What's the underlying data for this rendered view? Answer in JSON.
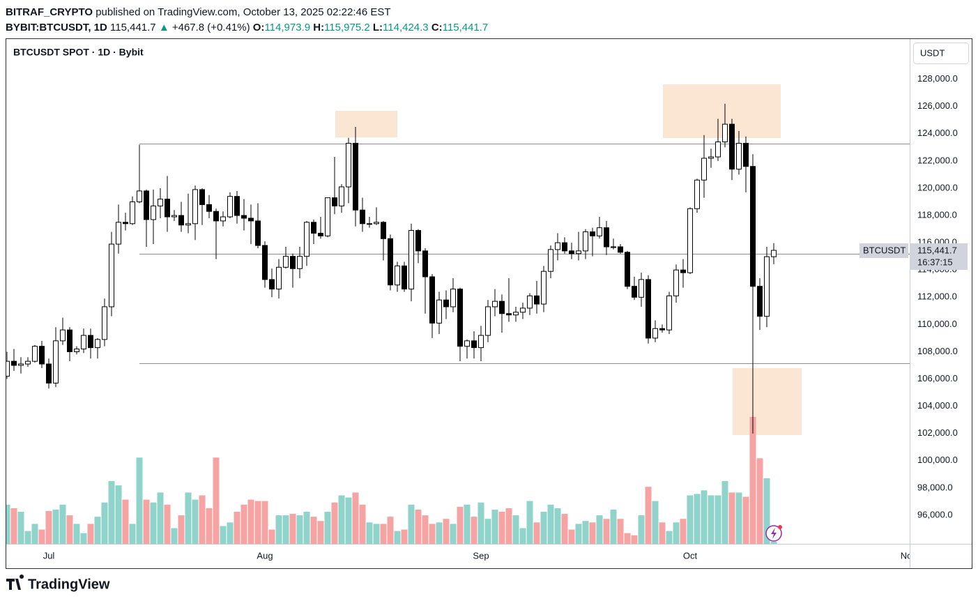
{
  "header": {
    "author": "BITRAF_CRYPTO",
    "published": "published on TradingView.com, October 13, 2025 02:22:46 EST"
  },
  "legend": {
    "symbol": "BYBIT:BTCUSDT, 1D",
    "last": "115,441.7",
    "arrow": "▲",
    "change": "+467.8 (+0.41%)",
    "ohlc": [
      {
        "key": "O:",
        "value": "114,973.9"
      },
      {
        "key": "H:",
        "value": "115,975.2"
      },
      {
        "key": "L:",
        "value": "114,424.3"
      },
      {
        "key": "C:",
        "value": "115,441.7"
      }
    ]
  },
  "footer": {
    "logo": "TradingView"
  },
  "chart_data": {
    "type": "candlestick",
    "title": "BTCUSDT SPOT · 1D · Bybit",
    "currency": "USDT",
    "symbol_label": "BTCUSDT",
    "last_label": "115,441.7",
    "countdown": "16:37:15",
    "x": [
      "2025-06-25",
      "2025-06-26",
      "2025-06-27",
      "2025-06-28",
      "2025-06-29",
      "2025-06-30",
      "2025-07-01",
      "2025-07-02",
      "2025-07-03",
      "2025-07-04",
      "2025-07-05",
      "2025-07-06",
      "2025-07-07",
      "2025-07-08",
      "2025-07-09",
      "2025-07-10",
      "2025-07-11",
      "2025-07-12",
      "2025-07-13",
      "2025-07-14",
      "2025-07-15",
      "2025-07-16",
      "2025-07-17",
      "2025-07-18",
      "2025-07-19",
      "2025-07-20",
      "2025-07-21",
      "2025-07-22",
      "2025-07-23",
      "2025-07-24",
      "2025-07-25",
      "2025-07-26",
      "2025-07-27",
      "2025-07-28",
      "2025-07-29",
      "2025-07-30",
      "2025-07-31",
      "2025-08-01",
      "2025-08-02",
      "2025-08-03",
      "2025-08-04",
      "2025-08-05",
      "2025-08-06",
      "2025-08-07",
      "2025-08-08",
      "2025-08-09",
      "2025-08-10",
      "2025-08-11",
      "2025-08-12",
      "2025-08-13",
      "2025-08-14",
      "2025-08-15",
      "2025-08-16",
      "2025-08-17",
      "2025-08-18",
      "2025-08-19",
      "2025-08-20",
      "2025-08-21",
      "2025-08-22",
      "2025-08-23",
      "2025-08-24",
      "2025-08-25",
      "2025-08-26",
      "2025-08-27",
      "2025-08-28",
      "2025-08-29",
      "2025-08-30",
      "2025-08-31",
      "2025-09-01",
      "2025-09-02",
      "2025-09-03",
      "2025-09-04",
      "2025-09-05",
      "2025-09-06",
      "2025-09-07",
      "2025-09-08",
      "2025-09-09",
      "2025-09-10",
      "2025-09-11",
      "2025-09-12",
      "2025-09-13",
      "2025-09-14",
      "2025-09-15",
      "2025-09-16",
      "2025-09-17",
      "2025-09-18",
      "2025-09-19",
      "2025-09-20",
      "2025-09-21",
      "2025-09-22",
      "2025-09-23",
      "2025-09-24",
      "2025-09-25",
      "2025-09-26",
      "2025-09-27",
      "2025-09-28",
      "2025-09-29",
      "2025-09-30",
      "2025-10-01",
      "2025-10-02",
      "2025-10-03",
      "2025-10-04",
      "2025-10-05",
      "2025-10-06",
      "2025-10-07",
      "2025-10-08",
      "2025-10-09",
      "2025-10-10",
      "2025-10-11",
      "2025-10-12",
      "2025-10-13"
    ],
    "open": [
      106200,
      107300,
      107000,
      107100,
      107300,
      108400,
      107100,
      105700,
      108800,
      109600,
      108000,
      108200,
      109200,
      108300,
      108900,
      111300,
      115900,
      117500,
      117400,
      119000,
      119800,
      117700,
      118700,
      119200,
      117900,
      118000,
      117300,
      117400,
      119900,
      118800,
      118300,
      117600,
      117900,
      119400,
      118000,
      117800,
      117600,
      115800,
      113300,
      112600,
      114200,
      115000,
      114100,
      115000,
      117500,
      116700,
      116500,
      119300,
      118700,
      120100,
      123300,
      118400,
      117400,
      117400,
      117500,
      116300,
      112900,
      114300,
      112600,
      116900,
      115400,
      113500,
      110100,
      111800,
      111300,
      112600,
      108400,
      108800,
      108300,
      109200,
      111300,
      111700,
      110800,
      110700,
      110900,
      111200,
      112100,
      111500,
      113900,
      115500,
      116000,
      115400,
      115200,
      115400,
      116800,
      116500,
      117100,
      115700,
      115700,
      115300,
      112800,
      112000,
      113300,
      109000,
      109700,
      109600,
      112100,
      114000,
      113800,
      118500,
      120600,
      122200,
      122300,
      123400,
      124700,
      121400,
      123300,
      121600,
      112800,
      110600,
      114973.9
    ],
    "high": [
      108000,
      108200,
      107600,
      107600,
      108500,
      108800,
      107500,
      109800,
      110500,
      109800,
      108400,
      109700,
      109700,
      109000,
      111900,
      116800,
      118800,
      118200,
      119400,
      123200,
      119900,
      119900,
      120000,
      120900,
      118400,
      119000,
      119600,
      120200,
      120000,
      119500,
      118500,
      118300,
      119700,
      119800,
      119200,
      118800,
      118900,
      116100,
      114100,
      114800,
      115700,
      115200,
      115700,
      117600,
      117700,
      117900,
      119300,
      122300,
      120300,
      123700,
      124500,
      119300,
      117900,
      118600,
      117600,
      116600,
      114600,
      114600,
      117400,
      117000,
      115600,
      113700,
      112400,
      112500,
      113400,
      112700,
      108900,
      109500,
      109900,
      111800,
      112600,
      112200,
      113400,
      111300,
      111600,
      112300,
      113200,
      114300,
      115800,
      116700,
      116400,
      116000,
      116800,
      117000,
      117100,
      117900,
      117600,
      116300,
      115900,
      115400,
      113500,
      113800,
      113600,
      110300,
      110000,
      112400,
      114400,
      114800,
      118600,
      120700,
      123900,
      122900,
      125100,
      126200,
      125100,
      124200,
      123800,
      122500,
      113400,
      115700,
      115975.2
    ],
    "low": [
      106000,
      106600,
      106400,
      106900,
      107200,
      106800,
      105300,
      105400,
      108500,
      107300,
      107800,
      107900,
      107500,
      107500,
      108400,
      110600,
      115200,
      116900,
      117300,
      118900,
      115700,
      115900,
      117800,
      116800,
      117600,
      116800,
      116700,
      116200,
      117300,
      117800,
      114800,
      117200,
      117800,
      117400,
      116900,
      115900,
      115600,
      112700,
      112000,
      111900,
      114100,
      112700,
      113400,
      114300,
      115900,
      116300,
      116400,
      118100,
      118200,
      118900,
      117200,
      116800,
      117100,
      117300,
      114700,
      112500,
      112400,
      112400,
      111700,
      114500,
      110800,
      109000,
      109300,
      110400,
      110900,
      107300,
      107500,
      107500,
      107300,
      108700,
      110600,
      109400,
      110200,
      110200,
      110400,
      110700,
      110800,
      110900,
      113400,
      114700,
      115200,
      114800,
      114700,
      114800,
      115000,
      116300,
      115100,
      115500,
      115200,
      112600,
      111800,
      111300,
      108600,
      108700,
      109400,
      109300,
      111600,
      112700,
      113700,
      118200,
      119300,
      121500,
      122000,
      123000,
      120600,
      121000,
      119700,
      102000,
      109600,
      109800,
      114424.3
    ],
    "close": [
      107300,
      107000,
      107100,
      107300,
      108400,
      107100,
      105700,
      108800,
      109600,
      108000,
      108200,
      109200,
      108300,
      108900,
      111300,
      115900,
      117500,
      117400,
      119000,
      119800,
      117700,
      118700,
      119200,
      117900,
      118000,
      117300,
      117400,
      119900,
      118800,
      118300,
      117600,
      117900,
      119400,
      118000,
      117800,
      117600,
      115800,
      113300,
      112600,
      114200,
      115000,
      114100,
      115000,
      117500,
      116700,
      116500,
      119300,
      118700,
      120100,
      123300,
      118400,
      117400,
      117400,
      117500,
      116300,
      112900,
      114300,
      112600,
      116900,
      115400,
      113500,
      110100,
      111800,
      111300,
      112600,
      108400,
      108800,
      108300,
      109200,
      111300,
      111700,
      110800,
      110700,
      110900,
      111200,
      112100,
      111500,
      113900,
      115500,
      116000,
      115400,
      115200,
      115400,
      116800,
      116500,
      117100,
      115700,
      115700,
      115300,
      112800,
      112000,
      113300,
      109000,
      109700,
      109600,
      112100,
      114000,
      113800,
      118500,
      120600,
      122200,
      122300,
      123400,
      124700,
      121400,
      123300,
      121600,
      112800,
      110600,
      114973.9,
      115441.7
    ],
    "volume": [
      55,
      50,
      45,
      18,
      28,
      20,
      46,
      48,
      55,
      40,
      28,
      15,
      28,
      38,
      58,
      88,
      82,
      62,
      28,
      121,
      62,
      58,
      72,
      55,
      22,
      40,
      72,
      62,
      68,
      50,
      121,
      25,
      30,
      45,
      55,
      62,
      60,
      60,
      20,
      40,
      40,
      42,
      40,
      45,
      38,
      32,
      45,
      58,
      68,
      65,
      72,
      55,
      30,
      28,
      28,
      38,
      18,
      20,
      55,
      48,
      40,
      28,
      30,
      35,
      28,
      52,
      55,
      38,
      58,
      35,
      48,
      45,
      50,
      40,
      22,
      60,
      30,
      45,
      55,
      50,
      42,
      20,
      28,
      32,
      30,
      40,
      35,
      48,
      35,
      15,
      12,
      40,
      80,
      60,
      30,
      18,
      30,
      35,
      68,
      70,
      75,
      68,
      68,
      88,
      72,
      72,
      66,
      178,
      120,
      92,
      3
    ],
    "up_color": "#ffffff",
    "down_color": "#000000",
    "volume_up_color": "#8fd3ca",
    "volume_down_color": "#f5a3a3",
    "levels": [
      123250,
      115200,
      107150
    ],
    "xlim": [
      "2025-06-25",
      "2025-11-01"
    ],
    "xticks": [
      {
        "value": "2025-07-01",
        "label": "Jul"
      },
      {
        "value": "2025-08-01",
        "label": "Aug"
      },
      {
        "value": "2025-09-01",
        "label": "Sep"
      },
      {
        "value": "2025-10-01",
        "label": "Oct"
      },
      {
        "value": "2025-11-01",
        "label": "No"
      }
    ],
    "ylim": [
      93900,
      130950
    ],
    "yticks": [
      {
        "value": 96000,
        "label": "96,000.0"
      },
      {
        "value": 98000,
        "label": "98,000.0"
      },
      {
        "value": 100000,
        "label": "100,000.0"
      },
      {
        "value": 102000,
        "label": "102,000.0"
      },
      {
        "value": 104000,
        "label": "104,000.0"
      },
      {
        "value": 106000,
        "label": "106,000.0"
      },
      {
        "value": 108000,
        "label": "108,000.0"
      },
      {
        "value": 110000,
        "label": "110,000.0"
      },
      {
        "value": 112000,
        "label": "112,000.0"
      },
      {
        "value": 114000,
        "label": "114,000.0"
      },
      {
        "value": 116000,
        "label": "116,000.0"
      },
      {
        "value": 118000,
        "label": "118,000.0"
      },
      {
        "value": 120000,
        "label": "120,000.0"
      },
      {
        "value": 122000,
        "label": "122,000.0"
      },
      {
        "value": 124000,
        "label": "124,000.0"
      },
      {
        "value": 126000,
        "label": "126,000.0"
      },
      {
        "value": 128000,
        "label": "128,000.0"
      }
    ],
    "grid": false
  }
}
